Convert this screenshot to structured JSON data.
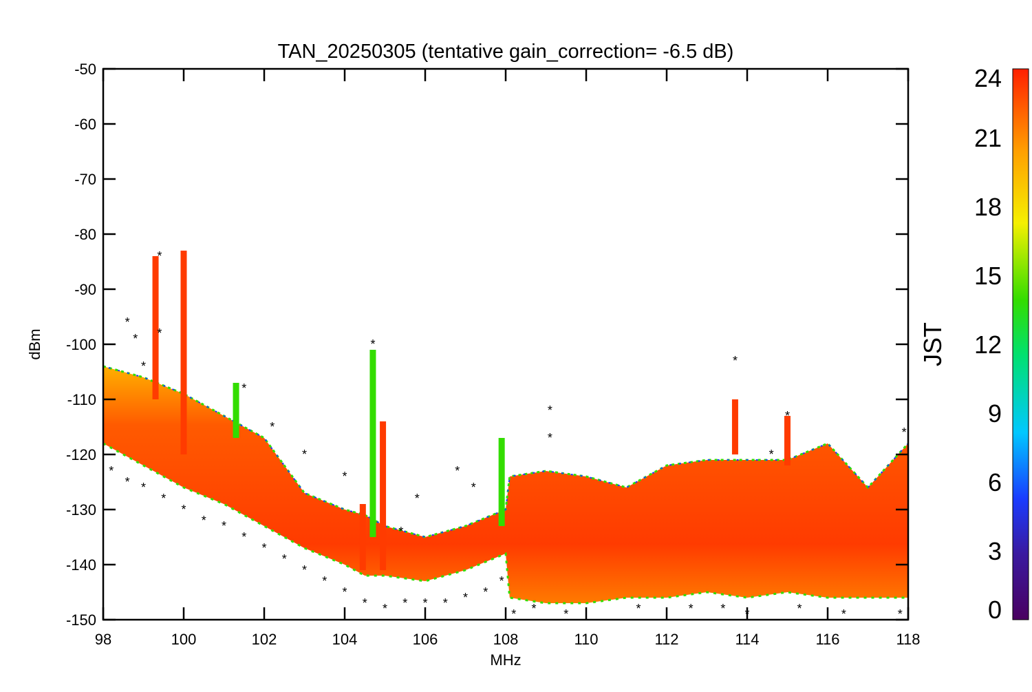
{
  "chart_data": {
    "type": "scatter",
    "title": "TAN_20250305 (tentative gain_correction= -6.5 dB)",
    "xlabel": "MHz",
    "ylabel": "dBm",
    "xlim": [
      98,
      118
    ],
    "ylim": [
      -150,
      -50
    ],
    "x_ticks": [
      "98",
      "100",
      "102",
      "104",
      "106",
      "108",
      "110",
      "112",
      "114",
      "116",
      "118"
    ],
    "y_ticks": [
      "-50",
      "-60",
      "-70",
      "-80",
      "-90",
      "-100",
      "-110",
      "-120",
      "-130",
      "-140",
      "-150"
    ],
    "grid": false,
    "colorbar": {
      "label": "JST",
      "range": [
        0,
        24
      ],
      "ticks": [
        "0",
        "3",
        "6",
        "9",
        "12",
        "15",
        "18",
        "21",
        "24"
      ],
      "colormap": "rainbow"
    },
    "series": [
      {
        "role": "noise-floor-upper-envelope",
        "x": [
          98,
          99,
          100,
          101,
          102,
          103,
          104,
          104.5,
          105,
          106,
          107,
          108,
          108.1,
          109,
          110,
          111,
          112,
          113,
          114,
          115,
          116,
          117,
          117.5,
          118
        ],
        "y": [
          -104,
          -106,
          -109,
          -113,
          -117,
          -127,
          -130,
          -131,
          -133,
          -135,
          -133,
          -130,
          -124,
          -123,
          -124,
          -126,
          -122,
          -121,
          -121,
          -121,
          -118,
          -126,
          -122,
          -118
        ]
      },
      {
        "role": "noise-floor-lower-envelope",
        "x": [
          98,
          99,
          100,
          101,
          102,
          103,
          104,
          104.5,
          105,
          106,
          107,
          108,
          108.1,
          109,
          110,
          111,
          112,
          113,
          114,
          115,
          116,
          117,
          118
        ],
        "y": [
          -118,
          -122,
          -126,
          -129,
          -133,
          -137,
          -140,
          -142,
          -142,
          -143,
          -141,
          -138,
          -146,
          -147,
          -147,
          -146,
          -146,
          -145,
          -146,
          -145,
          -146,
          -146,
          -146
        ]
      },
      {
        "role": "low-outlier-points",
        "color": "#f5c000",
        "x": [
          98.2,
          98.6,
          99.0,
          99.5,
          100.0,
          100.5,
          101.0,
          101.5,
          102.0,
          102.5,
          103.0,
          103.5,
          104.0,
          104.5,
          105.0,
          105.5,
          106.0,
          106.5,
          107.0,
          107.5,
          107.9
        ],
        "y": [
          -123,
          -125,
          -126,
          -128,
          -130,
          -132,
          -133,
          -135,
          -137,
          -139,
          -141,
          -143,
          -145,
          -147,
          -148,
          -147,
          -147,
          -147,
          -146,
          -145,
          -143
        ]
      }
    ],
    "spikes": [
      {
        "x": 99.3,
        "top": -84,
        "bottom": -110,
        "color": "#ff3b00"
      },
      {
        "x": 100.0,
        "top": -83,
        "bottom": -120,
        "color": "#ff3b00"
      },
      {
        "x": 101.3,
        "top": -107,
        "bottom": -117,
        "color": "#33dd00"
      },
      {
        "x": 104.45,
        "top": -129,
        "bottom": -141,
        "color": "#ff3b00"
      },
      {
        "x": 104.7,
        "top": -101,
        "bottom": -135,
        "color": "#33dd00"
      },
      {
        "x": 104.95,
        "top": -114,
        "bottom": -141,
        "color": "#ff3b00"
      },
      {
        "x": 107.9,
        "top": -117,
        "bottom": -133,
        "color": "#33dd00"
      },
      {
        "x": 113.7,
        "top": -110,
        "bottom": -120,
        "color": "#ff3b00"
      },
      {
        "x": 115.0,
        "top": -113,
        "bottom": -122,
        "color": "#ff3b00"
      }
    ],
    "outliers": [
      {
        "x": 98.6,
        "y": -96,
        "color": "#1a8cff"
      },
      {
        "x": 98.8,
        "y": -99,
        "color": "#1a8cff"
      },
      {
        "x": 99.0,
        "y": -104,
        "color": "#00c8ff"
      },
      {
        "x": 99.4,
        "y": -98,
        "color": "#00c8ff"
      },
      {
        "x": 99.4,
        "y": -84,
        "color": "#5a007a"
      },
      {
        "x": 101.5,
        "y": -108,
        "color": "#1a3cff"
      },
      {
        "x": 102.2,
        "y": -115,
        "color": "#33dd00"
      },
      {
        "x": 103.0,
        "y": -120,
        "color": "#00c8ff"
      },
      {
        "x": 104.0,
        "y": -124,
        "color": "#1a3cff"
      },
      {
        "x": 104.7,
        "y": -100,
        "color": "#3a1aa0"
      },
      {
        "x": 105.4,
        "y": -134,
        "color": "#00c8ff"
      },
      {
        "x": 105.8,
        "y": -128,
        "color": "#00c8ff"
      },
      {
        "x": 106.8,
        "y": -123,
        "color": "#1a3cff"
      },
      {
        "x": 107.2,
        "y": -126,
        "color": "#1a3cff"
      },
      {
        "x": 109.1,
        "y": -112,
        "color": "#33dd00"
      },
      {
        "x": 109.1,
        "y": -117,
        "color": "#33dd00"
      },
      {
        "x": 113.7,
        "y": -103,
        "color": "#3a1aa0"
      },
      {
        "x": 114.6,
        "y": -120,
        "color": "#00c8ff"
      },
      {
        "x": 115.0,
        "y": -113,
        "color": "#f5f000"
      },
      {
        "x": 117.9,
        "y": -116,
        "color": "#1a3cff"
      },
      {
        "x": 108.2,
        "y": -149,
        "color": "#1a3cff"
      },
      {
        "x": 108.7,
        "y": -148,
        "color": "#5a007a"
      },
      {
        "x": 109.5,
        "y": -149,
        "color": "#1a3cff"
      },
      {
        "x": 111.3,
        "y": -148,
        "color": "#5a007a"
      },
      {
        "x": 112.6,
        "y": -148,
        "color": "#33dd00"
      },
      {
        "x": 113.4,
        "y": -148,
        "color": "#1a3cff"
      },
      {
        "x": 114.0,
        "y": -149,
        "color": "#5a007a"
      },
      {
        "x": 115.3,
        "y": -148,
        "color": "#00c8ff"
      },
      {
        "x": 116.4,
        "y": -149,
        "color": "#1a3cff"
      },
      {
        "x": 117.8,
        "y": -149,
        "color": "#33dd00"
      }
    ]
  }
}
